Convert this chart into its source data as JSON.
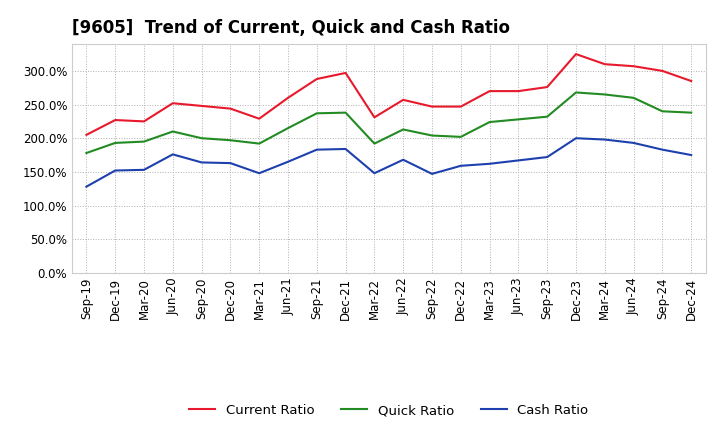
{
  "title": "[9605]  Trend of Current, Quick and Cash Ratio",
  "x_labels": [
    "Sep-19",
    "Dec-19",
    "Mar-20",
    "Jun-20",
    "Sep-20",
    "Dec-20",
    "Mar-21",
    "Jun-21",
    "Sep-21",
    "Dec-21",
    "Mar-22",
    "Jun-22",
    "Sep-22",
    "Dec-22",
    "Mar-23",
    "Jun-23",
    "Sep-23",
    "Dec-23",
    "Mar-24",
    "Jun-24",
    "Sep-24",
    "Dec-24"
  ],
  "current_ratio": [
    205,
    227,
    225,
    252,
    248,
    244,
    229,
    260,
    288,
    297,
    231,
    257,
    247,
    247,
    270,
    270,
    276,
    325,
    310,
    307,
    300,
    285
  ],
  "quick_ratio": [
    178,
    193,
    195,
    210,
    200,
    197,
    192,
    215,
    237,
    238,
    192,
    213,
    204,
    202,
    224,
    228,
    232,
    268,
    265,
    260,
    240,
    238
  ],
  "cash_ratio": [
    128,
    152,
    153,
    176,
    164,
    163,
    148,
    165,
    183,
    184,
    148,
    168,
    147,
    159,
    162,
    167,
    172,
    200,
    198,
    193,
    183,
    175
  ],
  "current_color": "#e8192c",
  "quick_color": "#228b22",
  "cash_color": "#1e40af",
  "background_color": "#ffffff",
  "grid_color": "#b0b0b0",
  "ylim": [
    0,
    340
  ],
  "yticks": [
    0,
    50,
    100,
    150,
    200,
    250,
    300
  ],
  "legend_labels": [
    "Current Ratio",
    "Quick Ratio",
    "Cash Ratio"
  ],
  "title_fontsize": 12,
  "tick_fontsize": 8.5,
  "line_width": 1.5
}
